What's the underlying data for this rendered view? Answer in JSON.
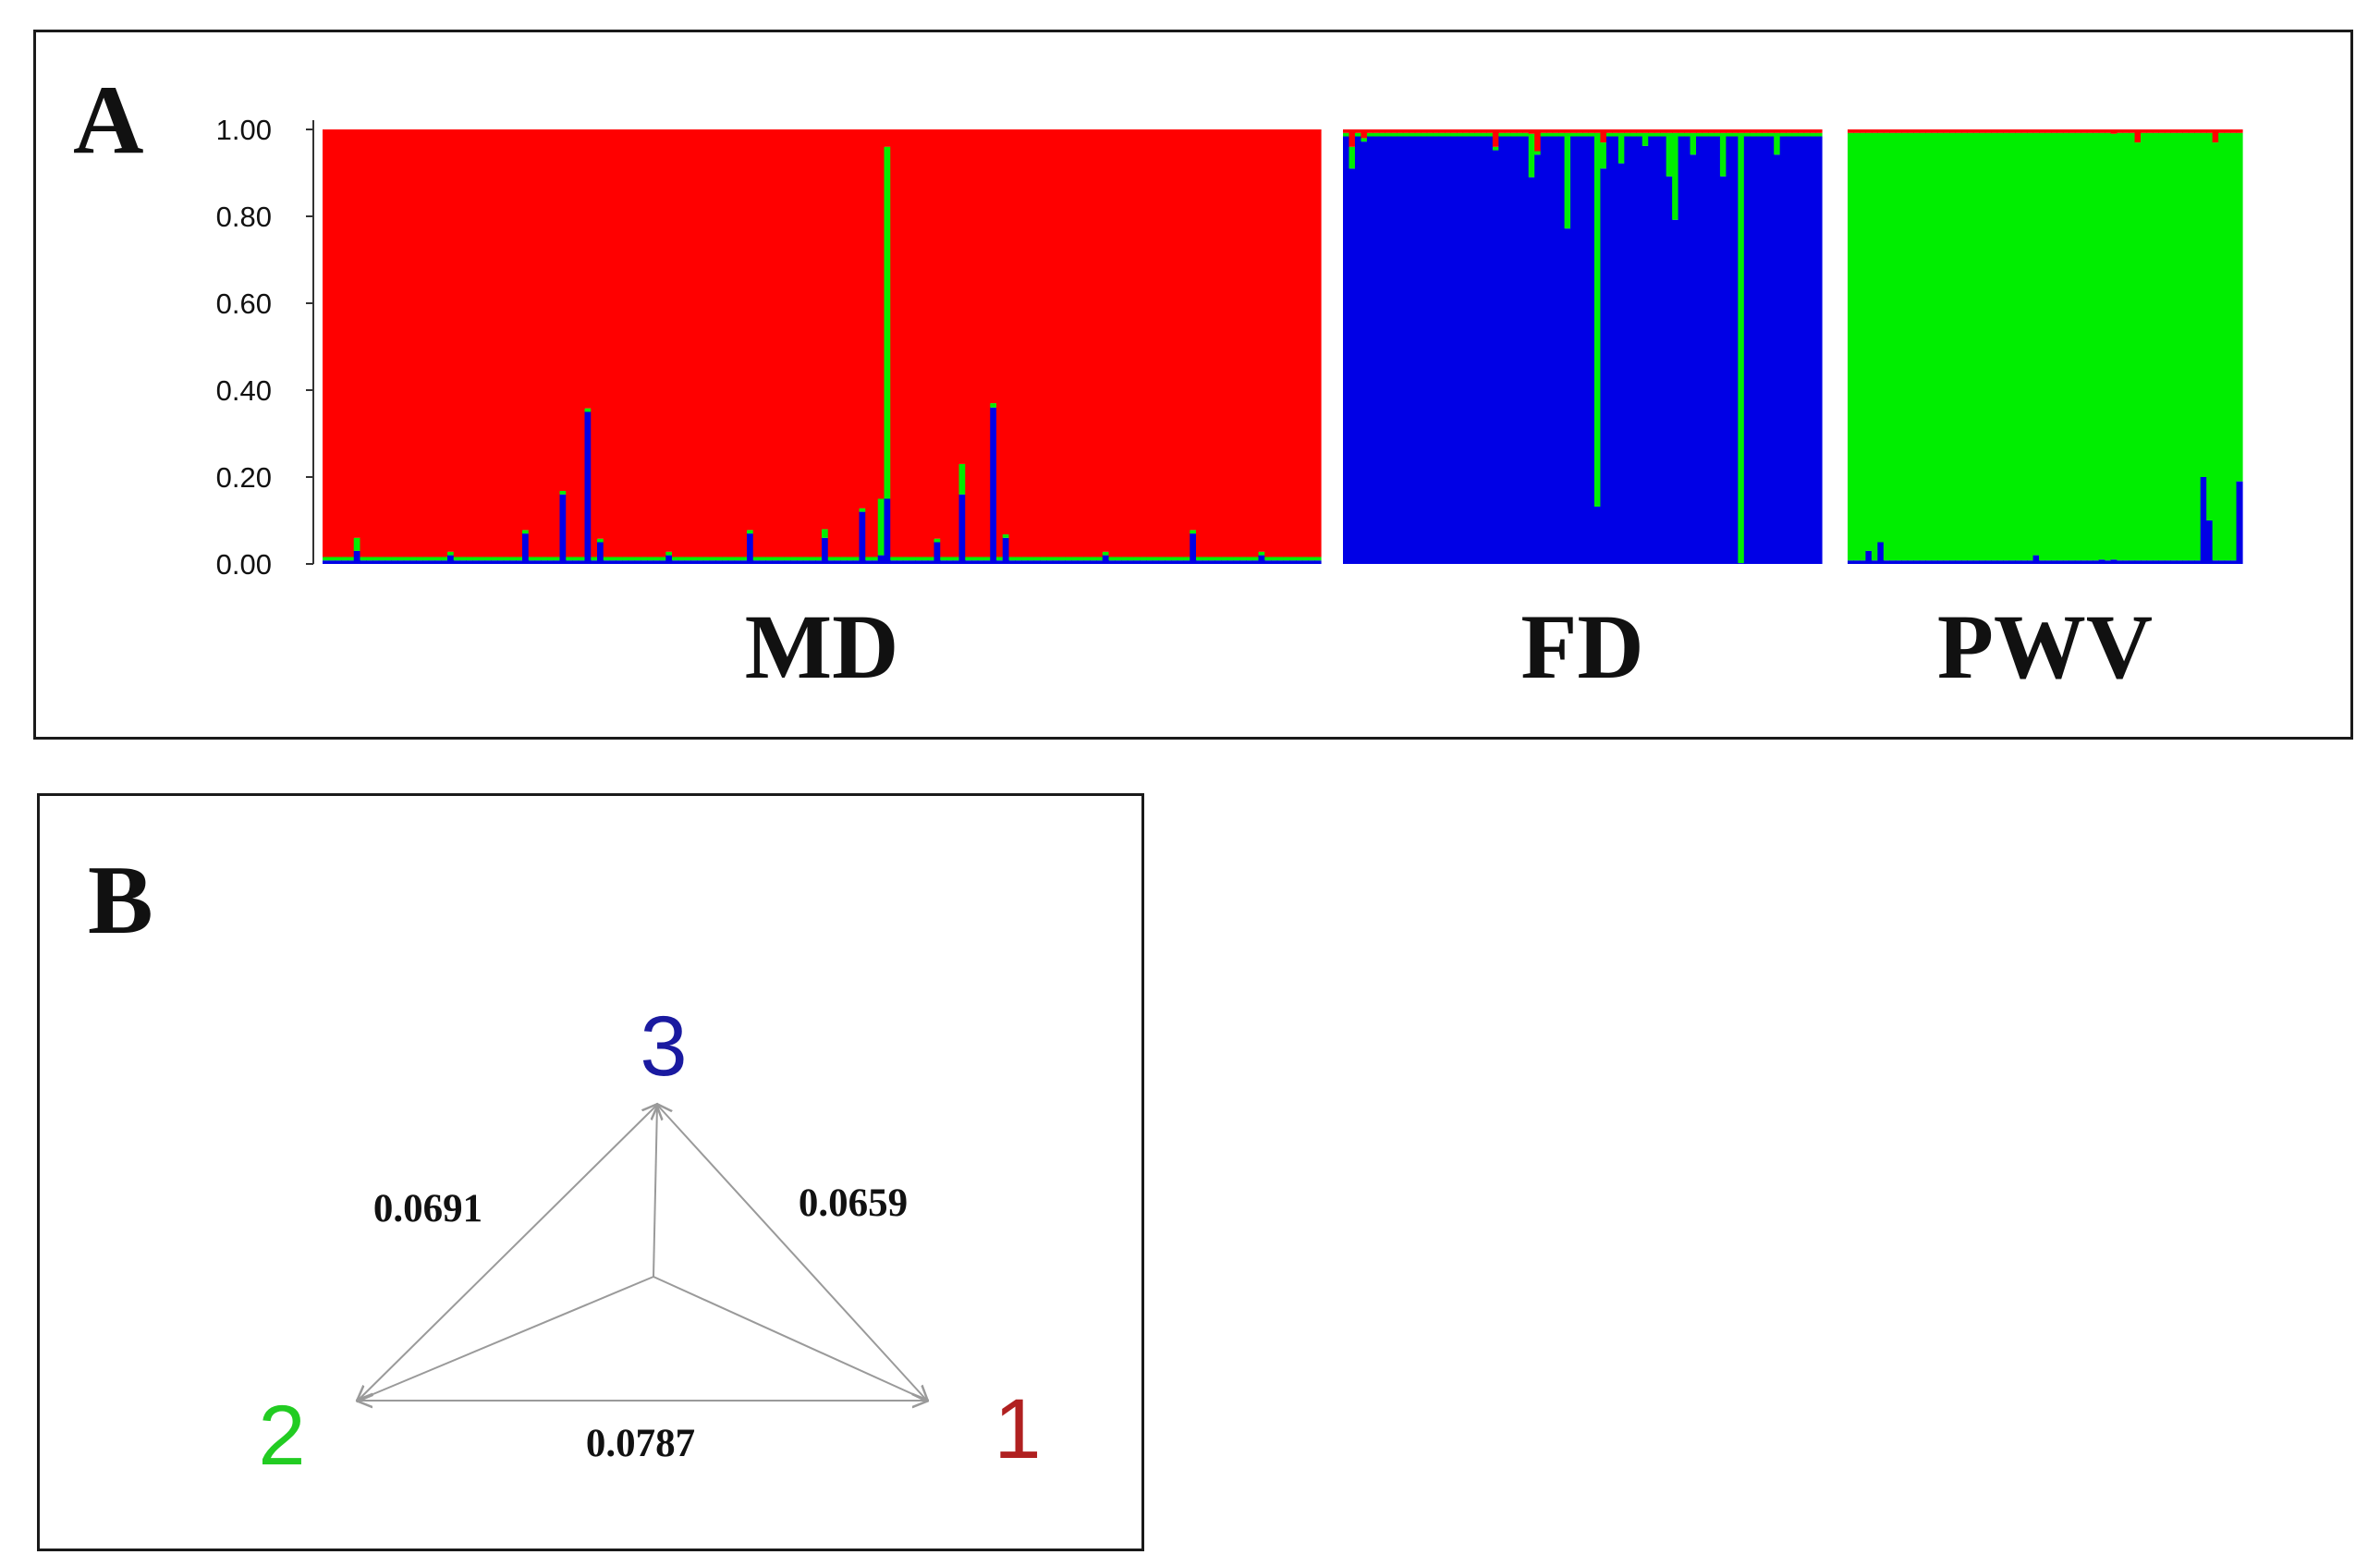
{
  "panel_a": {
    "letter": "A"
  },
  "panel_b": {
    "letter": "B"
  },
  "colors": {
    "red": "#ff0000",
    "green": "#00ee00",
    "blue": "#0000e6",
    "yellow": "#d8c000",
    "line": "#9a9a9a"
  },
  "chart_data": [
    {
      "type": "bar",
      "stacked": true,
      "ylim": [
        0,
        1
      ],
      "y_ticks": [
        "0.00",
        "0.20",
        "0.40",
        "0.60",
        "0.80",
        "1.00"
      ],
      "grid": false,
      "series_colors": {
        "cluster_1": "#ff0000",
        "cluster_2": "#00ee00",
        "cluster_3": "#0000e6"
      },
      "groups": [
        {
          "label": "MD",
          "dominant": "cluster_1",
          "n": 160,
          "notable": [
            {
              "i": 5,
              "blue": 0.03,
              "green": 0.03
            },
            {
              "i": 20,
              "blue": 0.02
            },
            {
              "i": 32,
              "blue": 0.07
            },
            {
              "i": 38,
              "blue": 0.16
            },
            {
              "i": 42,
              "blue": 0.35
            },
            {
              "i": 44,
              "blue": 0.05
            },
            {
              "i": 55,
              "blue": 0.02
            },
            {
              "i": 68,
              "blue": 0.07
            },
            {
              "i": 80,
              "blue": 0.06,
              "green": 0.02
            },
            {
              "i": 86,
              "blue": 0.12
            },
            {
              "i": 89,
              "blue": 0.02,
              "green": 0.13
            },
            {
              "i": 90,
              "blue": 0.15,
              "green": 0.81
            },
            {
              "i": 98,
              "blue": 0.05
            },
            {
              "i": 102,
              "blue": 0.16,
              "green": 0.07
            },
            {
              "i": 107,
              "blue": 0.36,
              "green": 0.01
            },
            {
              "i": 109,
              "blue": 0.06
            },
            {
              "i": 125,
              "blue": 0.02
            },
            {
              "i": 139,
              "blue": 0.07
            },
            {
              "i": 150,
              "blue": 0.02
            }
          ]
        },
        {
          "label": "FD",
          "dominant": "cluster_3",
          "n": 80,
          "notable": [
            {
              "i": 1,
              "red": 0.04,
              "green": 0.05
            },
            {
              "i": 3,
              "red": 0.02
            },
            {
              "i": 25,
              "red": 0.04
            },
            {
              "i": 31,
              "red": 0.01,
              "green": 0.1
            },
            {
              "i": 32,
              "red": 0.05
            },
            {
              "i": 37,
              "green": 0.22
            },
            {
              "i": 42,
              "green": 0.86
            },
            {
              "i": 43,
              "red": 0.03,
              "green": 0.06
            },
            {
              "i": 46,
              "green": 0.07
            },
            {
              "i": 50,
              "green": 0.03
            },
            {
              "i": 54,
              "green": 0.1
            },
            {
              "i": 55,
              "green": 0.2
            },
            {
              "i": 58,
              "green": 0.05
            },
            {
              "i": 63,
              "green": 0.1
            },
            {
              "i": 66,
              "green": 0.99
            },
            {
              "i": 72,
              "green": 0.05
            }
          ]
        },
        {
          "label": "PWV",
          "dominant": "cluster_2",
          "n": 66,
          "notable": [
            {
              "i": 3,
              "blue": 0.03
            },
            {
              "i": 5,
              "blue": 0.05
            },
            {
              "i": 31,
              "blue": 0.02
            },
            {
              "i": 42,
              "blue": 0.01
            },
            {
              "i": 44,
              "blue": 0.01
            },
            {
              "i": 44,
              "red": 0.01
            },
            {
              "i": 48,
              "red": 0.03
            },
            {
              "i": 59,
              "blue": 0.2
            },
            {
              "i": 60,
              "blue": 0.1
            },
            {
              "i": 61,
              "red": 0.03
            },
            {
              "i": 65,
              "blue": 0.19
            }
          ]
        }
      ]
    },
    {
      "type": "diagram",
      "nodes": [
        {
          "label": "3",
          "color": "#1a1aa0"
        },
        {
          "label": "2",
          "color": "#22cc22"
        },
        {
          "label": "1",
          "color": "#b02020"
        }
      ],
      "distances": [
        {
          "pair": "2-3",
          "value": "0.0691"
        },
        {
          "pair": "1-3",
          "value": "0.0659"
        },
        {
          "pair": "1-2",
          "value": "0.0787"
        }
      ]
    }
  ]
}
